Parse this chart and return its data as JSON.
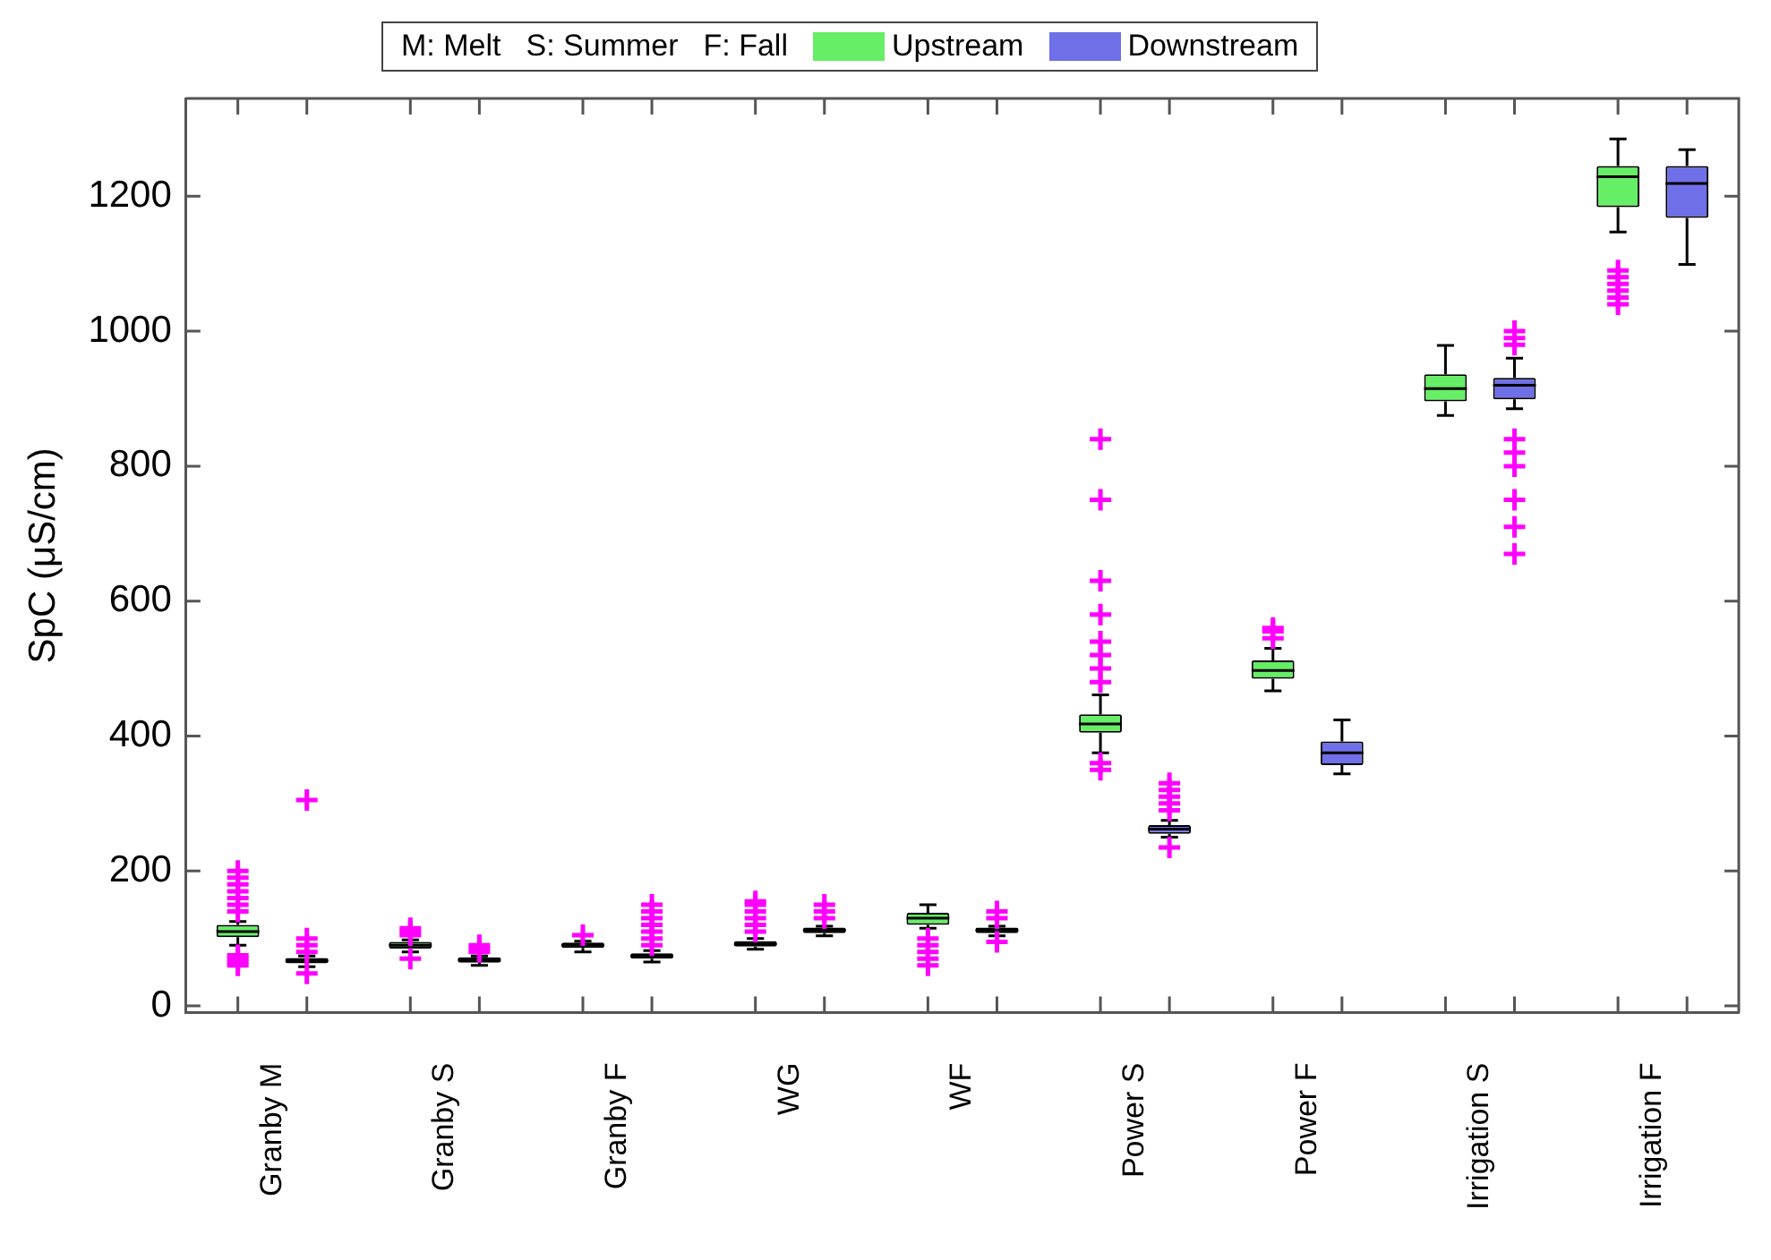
{
  "chart_data": {
    "type": "box",
    "ylabel": "SpC (μS/cm)",
    "legend": "top",
    "annotations": [
      "M: Melt",
      "S: Summer",
      "F: Fall"
    ],
    "categories": [
      "Granby M",
      "Granby S",
      "Granby F",
      "WG",
      "WF",
      "Power S",
      "Power F",
      "Irrigation S",
      "Irrigation F"
    ],
    "ylim": [
      -10,
      1345
    ],
    "yticks": [
      0,
      200,
      400,
      600,
      800,
      1000,
      1200
    ],
    "grid": false,
    "marker": "cross",
    "series": [
      {
        "name": "Upstream",
        "color": "#66ee66",
        "boxes": [
          {
            "low": 90,
            "q1": 102,
            "median": 110,
            "q3": 120,
            "high": 125,
            "outliers": [
              60,
              65,
              70,
              75,
              140,
              150,
              160,
              170,
              180,
              190,
              200
            ]
          },
          {
            "low": 80,
            "q1": 85,
            "median": 90,
            "q3": 95,
            "high": 98,
            "outliers": [
              70,
              105,
              110,
              115
            ]
          },
          {
            "low": 80,
            "q1": 86,
            "median": 90,
            "q3": 94,
            "high": 96,
            "outliers": [
              105
            ]
          },
          {
            "low": 84,
            "q1": 88,
            "median": 92,
            "q3": 96,
            "high": 100,
            "outliers": [
              110,
              120,
              130,
              140,
              150,
              155
            ]
          },
          {
            "low": 115,
            "q1": 120,
            "median": 130,
            "q3": 138,
            "high": 150,
            "outliers": [
              60,
              70,
              80,
              90,
              100
            ]
          },
          {
            "low": 375,
            "q1": 405,
            "median": 418,
            "q3": 432,
            "high": 461,
            "outliers": [
              350,
              360,
              480,
              500,
              520,
              540,
              580,
              630,
              750,
              840
            ]
          },
          {
            "low": 467,
            "q1": 485,
            "median": 497,
            "q3": 512,
            "high": 530,
            "outliers": [
              545,
              555,
              560
            ]
          },
          {
            "low": 875,
            "q1": 896,
            "median": 915,
            "q3": 936,
            "high": 979
          },
          {
            "low": 1147,
            "q1": 1184,
            "median": 1229,
            "q3": 1245,
            "high": 1285,
            "outliers": [
              1040,
              1050,
              1060,
              1070,
              1080,
              1090
            ]
          }
        ]
      },
      {
        "name": "Downstream",
        "color": "#6f6fe8",
        "boxes": [
          {
            "low": 58,
            "q1": 63,
            "median": 67,
            "q3": 71,
            "high": 74,
            "outliers": [
              48,
              80,
              90,
              100,
              305
            ]
          },
          {
            "low": 60,
            "q1": 64,
            "median": 68,
            "q3": 72,
            "high": 74,
            "outliers": [
              80,
              85,
              90
            ]
          },
          {
            "low": 65,
            "q1": 70,
            "median": 74,
            "q3": 78,
            "high": 82,
            "outliers": [
              90,
              100,
              110,
              120,
              130,
              140,
              150
            ]
          },
          {
            "low": 104,
            "q1": 108,
            "median": 112,
            "q3": 116,
            "high": 118,
            "outliers": [
              130,
              140,
              150
            ]
          },
          {
            "low": 104,
            "q1": 108,
            "median": 112,
            "q3": 116,
            "high": 118,
            "outliers": [
              95,
              130,
              140
            ]
          },
          {
            "low": 250,
            "q1": 255,
            "median": 262,
            "q3": 268,
            "high": 275,
            "outliers": [
              235,
              290,
              300,
              310,
              320,
              330
            ]
          },
          {
            "low": 344,
            "q1": 357,
            "median": 375,
            "q3": 392,
            "high": 424
          },
          {
            "low": 885,
            "q1": 899,
            "median": 920,
            "q3": 931,
            "high": 960,
            "outliers": [
              670,
              710,
              750,
              800,
              820,
              840,
              980,
              990,
              1000
            ]
          },
          {
            "low": 1099,
            "q1": 1168,
            "median": 1219,
            "q3": 1245,
            "high": 1269
          }
        ]
      }
    ]
  }
}
